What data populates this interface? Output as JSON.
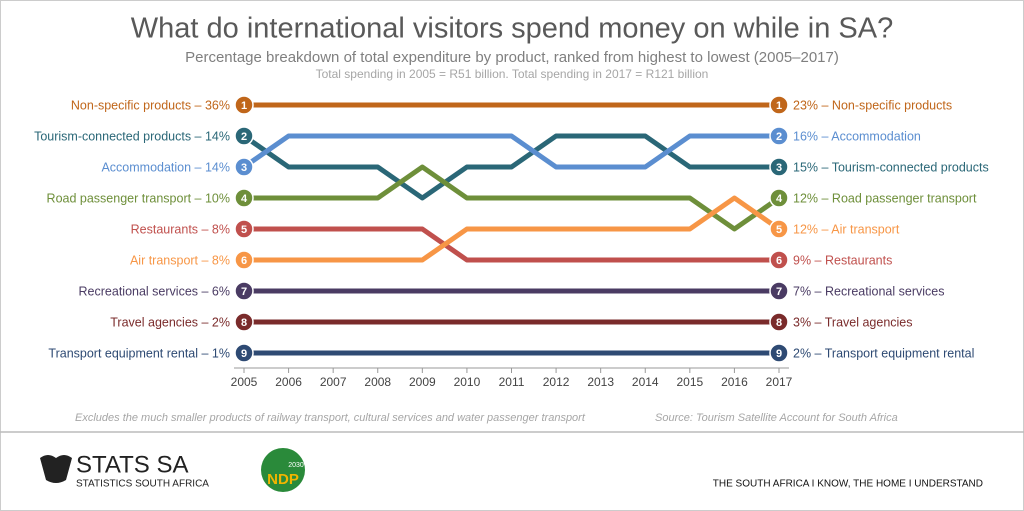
{
  "chart_data": {
    "type": "bump",
    "title": "What do international visitors spend money on while in SA?",
    "subtitle": "Percentage breakdown of total expenditure by product, ranked from highest to lowest (2005–2017)",
    "subtitle2": "Total spending in 2005 = R51 billion. Total spending in 2017 = R121 billion",
    "x": [
      2005,
      2006,
      2007,
      2008,
      2009,
      2010,
      2011,
      2012,
      2013,
      2014,
      2015,
      2016,
      2017
    ],
    "xticks": [
      2005,
      2006,
      2007,
      2008,
      2009,
      2010,
      2011,
      2012,
      2013,
      2014,
      2015,
      2016,
      2017
    ],
    "xlim": [
      2005,
      2017
    ],
    "ylim": [
      9,
      1
    ],
    "series": [
      {
        "name": "Non-specific products",
        "color": "#c0661a",
        "left_label": "Non-specific products – 36%",
        "right_label": "23% – Non-specific products",
        "values": [
          1,
          1,
          1,
          1,
          1,
          1,
          1,
          1,
          1,
          1,
          1,
          1,
          1
        ]
      },
      {
        "name": "Tourism-connected products",
        "color": "#2a6777",
        "left_label": "Tourism-connected products – 14%",
        "right_label": "15% – Tourism-connected products",
        "values": [
          2,
          3,
          3,
          3,
          4,
          3,
          3,
          2,
          2,
          2,
          3,
          3,
          3
        ]
      },
      {
        "name": "Accommodation",
        "color": "#5b8ed0",
        "left_label": "Accommodation – 14%",
        "right_label": "16% – Accommodation",
        "values": [
          3,
          2,
          2,
          2,
          2,
          2,
          2,
          3,
          3,
          3,
          2,
          2,
          2
        ]
      },
      {
        "name": "Road passenger transport",
        "color": "#6e8f3a",
        "left_label": "Road passenger transport – 10%",
        "right_label": "12% – Road passenger transport",
        "values": [
          4,
          4,
          4,
          4,
          3,
          4,
          4,
          4,
          4,
          4,
          4,
          5,
          4
        ]
      },
      {
        "name": "Restaurants",
        "color": "#c0504d",
        "left_label": "Restaurants – 8%",
        "right_label": "9% – Restaurants",
        "values": [
          5,
          5,
          5,
          5,
          5,
          6,
          6,
          6,
          6,
          6,
          6,
          6,
          6
        ]
      },
      {
        "name": "Air transport",
        "color": "#f79646",
        "left_label": "Air transport – 8%",
        "right_label": "12% – Air transport",
        "values": [
          6,
          6,
          6,
          6,
          6,
          5,
          5,
          5,
          5,
          5,
          5,
          4,
          5
        ]
      },
      {
        "name": "Recreational services",
        "color": "#4a3b63",
        "left_label": "Recreational services – 6%",
        "right_label": "7% – Recreational services",
        "values": [
          7,
          7,
          7,
          7,
          7,
          7,
          7,
          7,
          7,
          7,
          7,
          7,
          7
        ]
      },
      {
        "name": "Travel agencies",
        "color": "#7a2b2b",
        "left_label": "Travel agencies – 2%",
        "right_label": "3% – Travel agencies",
        "values": [
          8,
          8,
          8,
          8,
          8,
          8,
          8,
          8,
          8,
          8,
          8,
          8,
          8
        ]
      },
      {
        "name": "Transport equipment rental",
        "color": "#2e4a73",
        "left_label": "Transport equipment rental – 1%",
        "right_label": "2% – Transport equipment rental",
        "values": [
          9,
          9,
          9,
          9,
          9,
          9,
          9,
          9,
          9,
          9,
          9,
          9,
          9
        ]
      }
    ],
    "note": "Excludes the much smaller products of railway transport, cultural services and water passenger transport",
    "source": "Source: Tourism Satellite Account for South Africa"
  },
  "footer": {
    "brand": "STATS SA",
    "brand_sub": "STATISTICS SOUTH AFRICA",
    "ndp": "NDP",
    "ndp_year": "2030",
    "slogan": "THE SOUTH AFRICA I KNOW, THE HOME I UNDERSTAND"
  }
}
